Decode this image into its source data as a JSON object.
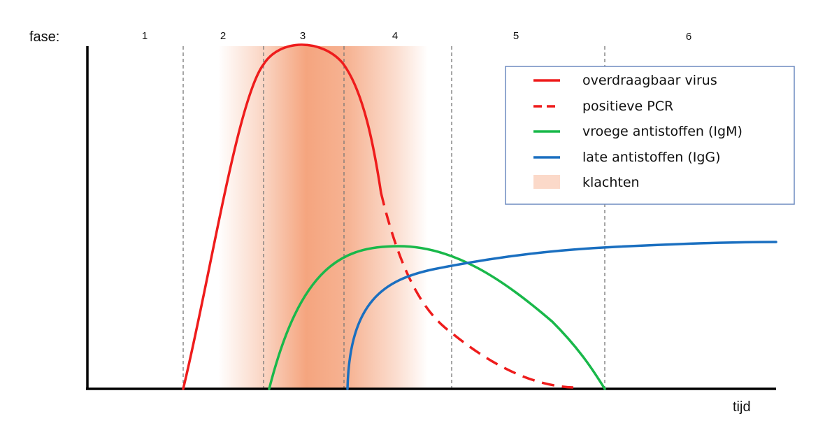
{
  "chart_data": {
    "type": "line",
    "phase_title": "fase:",
    "xlabel": "tijd",
    "ylabel": "",
    "phases": [
      "1",
      "2",
      "3",
      "4",
      "5",
      "6"
    ],
    "series": [
      {
        "name": "overdraagbaar virus",
        "color": "#ee1c1c",
        "style": "solid"
      },
      {
        "name": "positieve PCR",
        "color": "#ee1c1c",
        "style": "dashed"
      },
      {
        "name": "vroege antistoffen (IgM)",
        "color": "#19b84a",
        "style": "solid"
      },
      {
        "name": "late antistoffen (IgG)",
        "color": "#1a6fc0",
        "style": "solid"
      }
    ],
    "shaded_band": {
      "name": "klachten",
      "color": "#f4a078"
    },
    "legend_position": "top-right",
    "grid": false
  }
}
